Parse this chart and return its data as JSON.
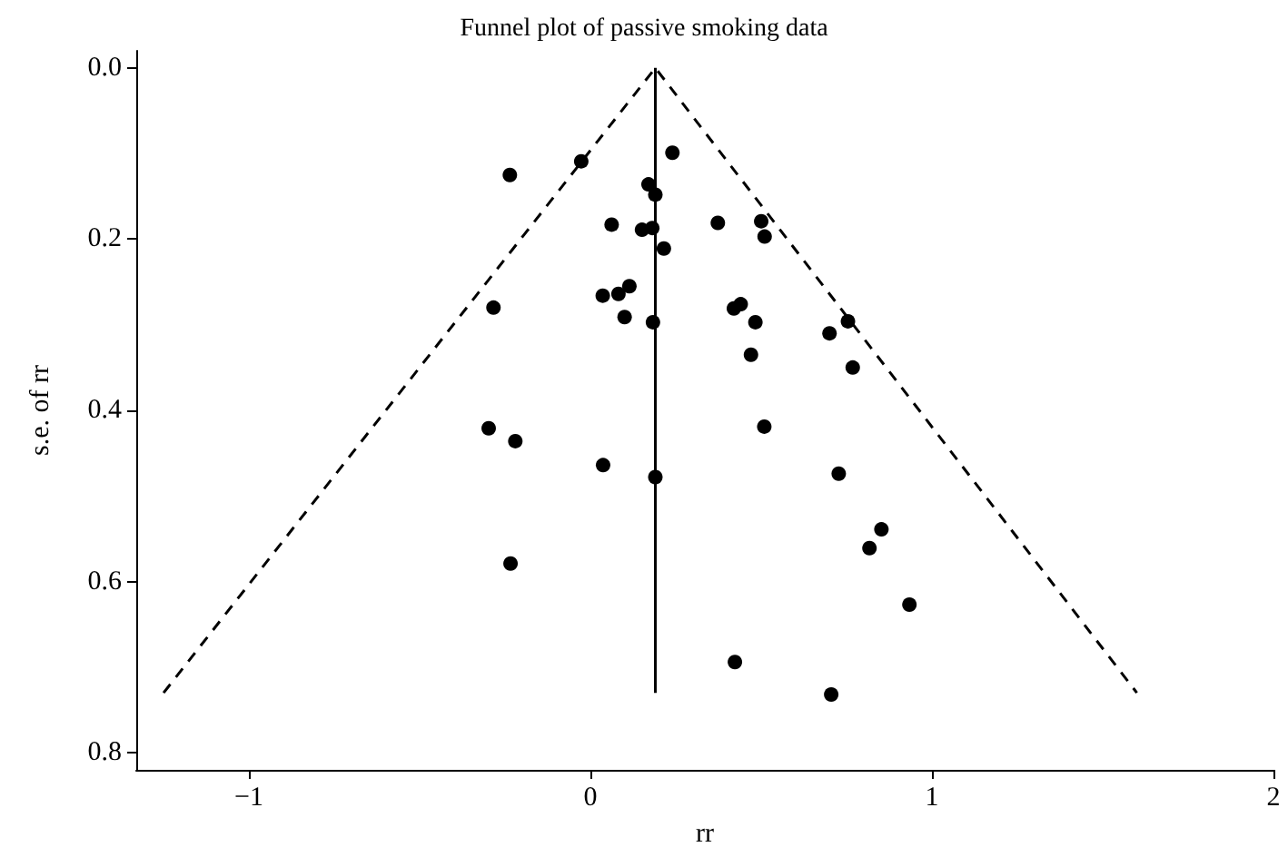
{
  "chart_data": {
    "type": "scatter",
    "title": "Funnel plot of passive smoking data",
    "xlabel": "rr",
    "ylabel": "s.e. of rr",
    "xlim": [
      -1.33,
      2.0
    ],
    "xticks": [
      {
        "value": -1,
        "label": "−1"
      },
      0,
      1,
      2
    ],
    "ylim": [
      0.82,
      -0.02
    ],
    "yticks": [
      {
        "value": 0,
        "label": "0.0"
      },
      0.2,
      0.4,
      0.6,
      0.8
    ],
    "grid": false,
    "series": [
      {
        "color": "#000000",
        "marker": "circle",
        "x": [
          -0.236,
          -0.027,
          0.24,
          0.17,
          0.19,
          0.062,
          0.151,
          0.181,
          0.215,
          -0.284,
          0.036,
          0.082,
          0.114,
          0.1,
          0.183,
          -0.298,
          -0.22,
          0.037,
          0.19,
          -0.234,
          0.373,
          0.5,
          0.51,
          0.42,
          0.44,
          0.483,
          0.7,
          0.754,
          0.47,
          0.768,
          0.509,
          0.727,
          0.852,
          0.817,
          0.934,
          0.423,
          0.705
        ],
        "values": [
          0.125,
          0.109,
          0.099,
          0.136,
          0.148,
          0.183,
          0.189,
          0.187,
          0.211,
          0.28,
          0.266,
          0.264,
          0.255,
          0.291,
          0.297,
          0.421,
          0.436,
          0.464,
          0.478,
          0.579,
          0.181,
          0.179,
          0.197,
          0.281,
          0.276,
          0.297,
          0.31,
          0.296,
          0.335,
          0.35,
          0.419,
          0.474,
          0.539,
          0.561,
          0.627,
          0.694,
          0.732
        ]
      },
      {
        "type": "line",
        "color": "#000000",
        "marker": "none",
        "line_style": "solid",
        "x": [
          0.19,
          0.19
        ],
        "values": [
          0,
          0.73
        ]
      },
      {
        "type": "line",
        "color": "#000000",
        "marker": "none",
        "line_style": "dashed",
        "x": [
          -1.25,
          0.19,
          1.6
        ],
        "values": [
          0.73,
          0,
          0.73
        ]
      }
    ]
  }
}
